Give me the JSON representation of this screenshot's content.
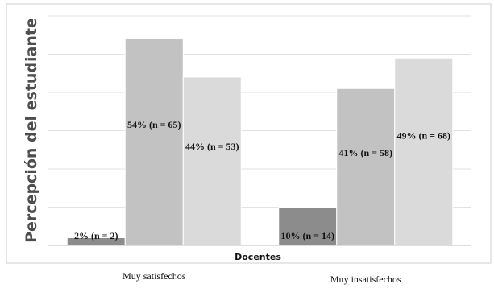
{
  "chart_data": {
    "type": "bar",
    "xlabel": "Docentes",
    "ylabel": "Percepción del estudiante",
    "categories": [
      "Muy satisfechos",
      "Muy insatisfechos"
    ],
    "series": [
      {
        "color": "#8c8c8c",
        "values": [
          2,
          10
        ],
        "labels": [
          "2% (n = 2)",
          "10% (n = 14)"
        ]
      },
      {
        "color": "#c2c2c2",
        "values": [
          54,
          41
        ],
        "labels": [
          "54% (n = 65)",
          "41% (n = 58)"
        ]
      },
      {
        "color": "#dadada",
        "values": [
          44,
          49
        ],
        "labels": [
          "44% (n = 53)",
          "49% (n = 68)"
        ]
      }
    ],
    "ylim": [
      0,
      60
    ],
    "grid": true,
    "legend": "none"
  }
}
